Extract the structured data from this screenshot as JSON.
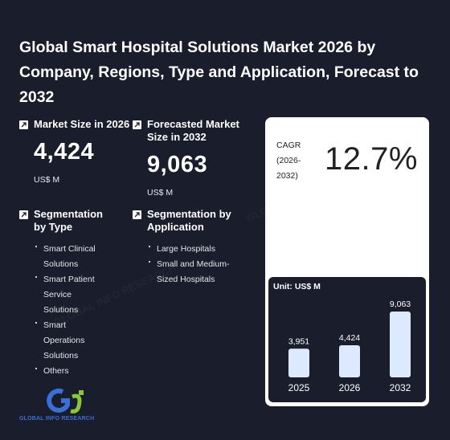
{
  "title": "Global Smart Hospital Solutions Market 2026 by Company, Regions, Type and Application, Forecast to 2032",
  "market_size": {
    "label": "Market Size in 2026",
    "value": "4,424",
    "unit": "US$ M"
  },
  "forecast": {
    "label": "Forecasted Market Size in 2032",
    "value": "9,063",
    "unit": "US$ M"
  },
  "segmentation_type": {
    "label": "Segmentation by Type",
    "items": [
      "Smart Clinical Solutions",
      "Smart Patient Service Solutions",
      "Smart Operations Solutions",
      "Others"
    ]
  },
  "segmentation_application": {
    "label": "Segmentation by Application",
    "items": [
      "Large Hospitals",
      "Small and Medium-Sized Hospitals"
    ]
  },
  "cagr": {
    "label": "CAGR (2026-2032)",
    "value": "12.7%"
  },
  "chart_data": {
    "type": "bar",
    "unit_label": "Unit: US$ M",
    "categories": [
      "2025",
      "2026",
      "2032"
    ],
    "values": [
      3951,
      4424,
      9063
    ],
    "value_labels": [
      "3,951",
      "4,424",
      "9,063"
    ],
    "bar_color": "#dce9ff"
  },
  "logo": {
    "text": "GLOBAL INFO RESEARCH"
  },
  "colors": {
    "background": "#1a1d2c",
    "card": "#ffffff",
    "bar": "#dce9ff",
    "logo_blue": "#3a6fd8",
    "logo_green": "#8cc63f"
  }
}
